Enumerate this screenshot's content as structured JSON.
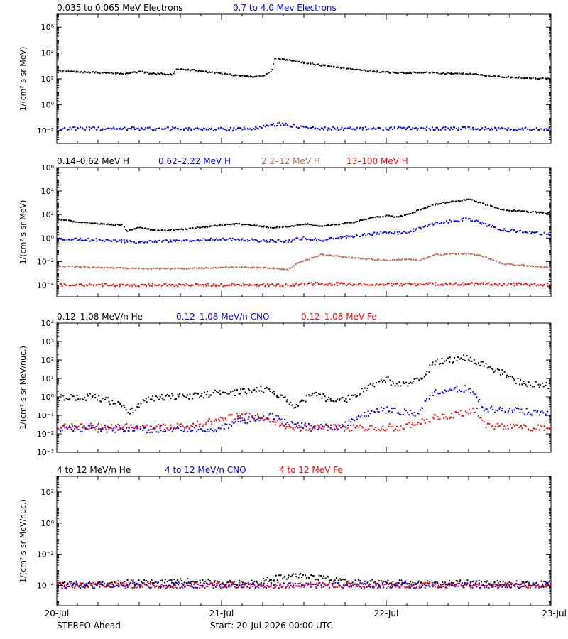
{
  "footer": {
    "spacecraft": "STEREO Ahead",
    "start": "Start: 20-Jul-2026 00:00 UTC"
  },
  "x_ticks": [
    "20-Jul",
    "21-Jul",
    "22-Jul",
    "23-Jul"
  ],
  "chart_data": [
    {
      "type": "scatter",
      "ylabel": "1/(cm² s sr MeV)",
      "yscale": "log",
      "ylim": [
        0.001,
        10000000
      ],
      "yticks": [
        {
          "exp": -2,
          "label": "10⁻²"
        },
        {
          "exp": 0,
          "label": "10⁰"
        },
        {
          "exp": 2,
          "label": "10²"
        },
        {
          "exp": 4,
          "label": "10⁴"
        },
        {
          "exp": 6,
          "label": "10⁶"
        }
      ],
      "x_unit": "days since 20-Jul-2026 00:00 UTC",
      "xlim": [
        0,
        3
      ],
      "series": [
        {
          "name": "0.035 to 0.065 MeV Electrons",
          "color": "#000000",
          "x": [
            0,
            0.2,
            0.4,
            0.5,
            0.55,
            0.6,
            0.7,
            0.72,
            0.8,
            0.9,
            1.0,
            1.1,
            1.2,
            1.25,
            1.3,
            1.32,
            1.4,
            1.5,
            1.6,
            1.7,
            1.8,
            1.9,
            2.0,
            2.1,
            2.2,
            2.3,
            2.4,
            2.5,
            2.6,
            2.7,
            2.8,
            3.0
          ],
          "y": [
            2.6,
            2.5,
            2.4,
            2.55,
            2.45,
            2.4,
            2.35,
            2.75,
            2.7,
            2.55,
            2.4,
            2.25,
            2.15,
            2.25,
            2.6,
            3.6,
            3.45,
            3.25,
            3.05,
            2.9,
            2.75,
            2.6,
            2.5,
            2.45,
            2.5,
            2.45,
            2.4,
            2.4,
            2.25,
            2.15,
            2.1,
            2.0
          ]
        },
        {
          "name": "0.7 to 4.0 Mev Electrons",
          "color": "#0000ff",
          "x": [
            0,
            0.5,
            1.0,
            1.2,
            1.3,
            1.35,
            1.4,
            1.5,
            1.6,
            2.0,
            2.5,
            3.0
          ],
          "y": [
            -1.85,
            -1.85,
            -1.9,
            -1.85,
            -1.6,
            -1.5,
            -1.55,
            -1.8,
            -1.85,
            -1.85,
            -1.85,
            -1.9
          ]
        }
      ]
    },
    {
      "type": "scatter",
      "ylabel": "1/(cm² s sr MeV)",
      "yscale": "log",
      "ylim": [
        1e-05,
        1000000
      ],
      "yticks": [
        {
          "exp": -4,
          "label": "10⁻⁴"
        },
        {
          "exp": -2,
          "label": "10⁻²"
        },
        {
          "exp": 0,
          "label": "10⁰"
        },
        {
          "exp": 2,
          "label": "10²"
        },
        {
          "exp": 4,
          "label": "10⁴"
        },
        {
          "exp": 6,
          "label": "10⁶"
        }
      ],
      "x_unit": "days since 20-Jul-2026 00:00 UTC",
      "xlim": [
        0,
        3
      ],
      "series": [
        {
          "name": "0.14–0.62 MeV H",
          "color": "#000000",
          "x": [
            0,
            0.1,
            0.3,
            0.4,
            0.42,
            0.5,
            0.6,
            0.8,
            1.0,
            1.1,
            1.2,
            1.3,
            1.4,
            1.5,
            1.6,
            1.8,
            1.9,
            2.0,
            2.05,
            2.1,
            2.2,
            2.3,
            2.45,
            2.5,
            2.7,
            3.0
          ],
          "y": [
            1.6,
            1.4,
            1.15,
            1.1,
            0.6,
            0.9,
            0.6,
            0.8,
            1.1,
            1.2,
            1.05,
            0.9,
            0.95,
            1.2,
            1.0,
            1.35,
            1.7,
            1.9,
            1.8,
            1.9,
            2.4,
            2.9,
            3.2,
            3.3,
            2.4,
            2.1
          ]
        },
        {
          "name": "0.62–2.22 MeV H",
          "color": "#0000ff",
          "x": [
            0,
            0.2,
            0.4,
            0.5,
            0.6,
            0.8,
            1.0,
            1.2,
            1.4,
            1.5,
            1.6,
            1.8,
            2.0,
            2.05,
            2.1,
            2.2,
            2.3,
            2.45,
            2.5,
            2.7,
            3.0
          ],
          "y": [
            -0.1,
            -0.15,
            -0.25,
            -0.4,
            -0.3,
            -0.2,
            -0.1,
            -0.2,
            -0.25,
            0.0,
            -0.2,
            0.15,
            0.55,
            0.4,
            0.45,
            0.8,
            1.3,
            1.55,
            1.6,
            0.7,
            0.3
          ]
        },
        {
          "name": "2.2–12 MeV H",
          "color": "#c07050",
          "x": [
            0,
            0.2,
            0.5,
            0.8,
            1.0,
            1.2,
            1.3,
            1.4,
            1.45,
            1.6,
            1.8,
            2.0,
            2.1,
            2.2,
            2.3,
            2.5,
            2.6,
            2.7,
            3.0
          ],
          "y": [
            -2.4,
            -2.5,
            -2.6,
            -2.6,
            -2.5,
            -2.5,
            -2.55,
            -2.7,
            -2.2,
            -1.4,
            -1.7,
            -1.9,
            -1.8,
            -1.9,
            -1.4,
            -1.3,
            -1.6,
            -2.2,
            -2.5
          ]
        },
        {
          "name": "13–100 MeV H",
          "color": "#ff0000",
          "x": [
            0,
            1.0,
            1.4,
            1.5,
            2.0,
            2.5,
            3.0
          ],
          "y": [
            -4.0,
            -4.0,
            -4.0,
            -3.9,
            -3.95,
            -3.9,
            -4.0
          ]
        }
      ]
    },
    {
      "type": "scatter",
      "ylabel": "1/(cm² s sr MeV/nuc.)",
      "yscale": "log",
      "ylim": [
        0.001,
        10000
      ],
      "yticks": [
        {
          "exp": -3,
          "label": "10⁻³"
        },
        {
          "exp": -2,
          "label": "10⁻²"
        },
        {
          "exp": -1,
          "label": "10⁻¹"
        },
        {
          "exp": 0,
          "label": "10⁰"
        },
        {
          "exp": 1,
          "label": "10¹"
        },
        {
          "exp": 2,
          "label": "10²"
        },
        {
          "exp": 3,
          "label": "10³"
        },
        {
          "exp": 4,
          "label": "10⁴"
        }
      ],
      "x_unit": "days since 20-Jul-2026 00:00 UTC",
      "xlim": [
        0,
        3
      ],
      "series": [
        {
          "name": "0.12–1.08 MeV/n He",
          "color": "#000000",
          "x": [
            0,
            0.2,
            0.35,
            0.45,
            0.55,
            0.7,
            0.9,
            1.0,
            1.1,
            1.2,
            1.3,
            1.4,
            1.45,
            1.55,
            1.7,
            1.8,
            1.9,
            2.0,
            2.05,
            2.1,
            2.2,
            2.3,
            2.45,
            2.5,
            2.7,
            2.8,
            3.0
          ],
          "y": [
            -0.05,
            0.0,
            -0.3,
            -0.8,
            -0.1,
            0.05,
            0.1,
            0.3,
            0.2,
            0.45,
            0.35,
            -0.2,
            -0.5,
            0.2,
            -0.3,
            0.05,
            0.6,
            1.0,
            0.6,
            0.7,
            1.0,
            1.9,
            2.1,
            2.05,
            1.3,
            0.8,
            0.6
          ]
        },
        {
          "name": "0.12–1.08 MeV/n CNO",
          "color": "#0000ff",
          "x": [
            0,
            0.5,
            1.0,
            1.1,
            1.2,
            1.3,
            1.4,
            1.5,
            1.7,
            1.8,
            1.9,
            2.0,
            2.2,
            2.25,
            2.3,
            2.45,
            2.5,
            2.6,
            2.7,
            3.0
          ],
          "y": [
            -1.7,
            -1.75,
            -1.7,
            -1.3,
            -1.2,
            -1.0,
            -1.5,
            -1.6,
            -1.7,
            -1.3,
            -0.8,
            -0.7,
            -0.9,
            0.0,
            0.3,
            0.4,
            0.5,
            -0.7,
            -0.7,
            -0.9
          ]
        },
        {
          "name": "0.12–1.08 MeV Fe",
          "color": "#ff0000",
          "x": [
            0,
            0.2,
            0.5,
            0.8,
            1.0,
            1.1,
            1.2,
            1.3,
            1.4,
            1.6,
            2.0,
            2.1,
            2.2,
            2.3,
            2.4,
            2.5,
            2.55,
            2.6,
            3.0
          ],
          "y": [
            -1.6,
            -1.6,
            -1.65,
            -1.6,
            -1.2,
            -1.0,
            -1.05,
            -1.3,
            -1.65,
            -1.7,
            -1.65,
            -1.65,
            -1.4,
            -1.1,
            -1.0,
            -0.8,
            -0.8,
            -1.6,
            -1.7
          ]
        }
      ]
    },
    {
      "type": "scatter",
      "ylabel": "1/(cm² s sr MeV/nuc.)",
      "yscale": "log",
      "ylim": [
        5e-06,
        1000
      ],
      "yticks": [
        {
          "exp": -4,
          "label": "10⁻⁴"
        },
        {
          "exp": -2,
          "label": "10⁻²"
        },
        {
          "exp": 0,
          "label": "10⁰"
        },
        {
          "exp": 2,
          "label": "10²"
        }
      ],
      "x_unit": "days since 20-Jul-2026 00:00 UTC",
      "xlim": [
        0,
        3
      ],
      "series": [
        {
          "name": "4 to 12 MeV/n He",
          "color": "#000000",
          "x": [
            0,
            0.2,
            0.5,
            0.8,
            1.0,
            1.2,
            1.3,
            1.4,
            1.5,
            1.6,
            1.7,
            1.8,
            2.0,
            2.5,
            3.0
          ],
          "y": [
            -3.9,
            -3.9,
            -3.8,
            -3.75,
            -3.85,
            -3.85,
            -3.6,
            -3.4,
            -3.4,
            -3.55,
            -3.6,
            -3.75,
            -3.85,
            -3.85,
            -3.9
          ]
        },
        {
          "name": "4 to 12 MeV/n CNO",
          "color": "#0000ff",
          "x": [
            0,
            1.5,
            3.0
          ],
          "y": [
            -4.0,
            -4.0,
            -4.0
          ]
        },
        {
          "name": "4 to 12 MeV Fe",
          "color": "#ff0000",
          "x": [
            0,
            3.0
          ],
          "y": [
            -4.0,
            -4.0
          ]
        }
      ]
    }
  ]
}
